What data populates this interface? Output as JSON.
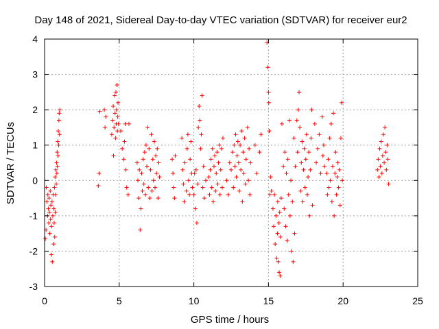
{
  "chart_data": {
    "type": "scatter",
    "title": "Day 148 of 2021, Sidereal Day-to-day VTEC variation (SDTVAR) for receiver eur2",
    "xlabel": "GPS time / hours",
    "ylabel": "SDTVAR / TECUs",
    "xlim": [
      0,
      25
    ],
    "ylim": [
      -3,
      4
    ],
    "xticks": [
      0,
      5,
      10,
      15,
      20,
      25
    ],
    "yticks": [
      -3,
      -2,
      -1,
      0,
      1,
      2,
      3,
      4
    ],
    "xtick_labels": [
      "0",
      "5",
      "10",
      "15",
      "20",
      "25"
    ],
    "ytick_labels": [
      "-3",
      "-2",
      "-1",
      "0",
      "1",
      "2",
      "3",
      "4"
    ],
    "grid": true,
    "marker": "+",
    "color": "#ff0000",
    "series": [
      {
        "name": "SDTVAR",
        "points": [
          [
            0.05,
            -1.65
          ],
          [
            0.1,
            -1.4
          ],
          [
            0.12,
            -0.2
          ],
          [
            0.15,
            -0.6
          ],
          [
            0.2,
            -1.0
          ],
          [
            0.22,
            -0.4
          ],
          [
            0.25,
            -0.8
          ],
          [
            0.28,
            -1.2
          ],
          [
            0.3,
            -0.5
          ],
          [
            0.32,
            -0.9
          ],
          [
            0.35,
            -1.5
          ],
          [
            0.38,
            -0.3
          ],
          [
            0.4,
            -1.1
          ],
          [
            0.42,
            -0.7
          ],
          [
            0.45,
            -2.1
          ],
          [
            0.47,
            -1.3
          ],
          [
            0.5,
            -0.6
          ],
          [
            0.52,
            -2.3
          ],
          [
            0.55,
            -1.0
          ],
          [
            0.57,
            -0.4
          ],
          [
            0.6,
            -1.8
          ],
          [
            0.62,
            -0.8
          ],
          [
            0.64,
            -1.2
          ],
          [
            0.66,
            -0.2
          ],
          [
            0.68,
            -1.6
          ],
          [
            0.7,
            0.1
          ],
          [
            0.72,
            -0.9
          ],
          [
            0.74,
            -0.4
          ],
          [
            0.76,
            0.3
          ],
          [
            0.78,
            -0.1
          ],
          [
            0.8,
            0.5
          ],
          [
            0.82,
            0.2
          ],
          [
            0.84,
            0.8
          ],
          [
            0.86,
            0.4
          ],
          [
            0.88,
            1.1
          ],
          [
            0.9,
            0.7
          ],
          [
            0.92,
            1.4
          ],
          [
            0.94,
            1.0
          ],
          [
            0.96,
            1.7
          ],
          [
            0.98,
            1.9
          ],
          [
            1.0,
            1.3
          ],
          [
            1.02,
            2.0
          ],
          [
            3.6,
            -0.15
          ],
          [
            3.65,
            0.2
          ],
          [
            3.7,
            1.95
          ],
          [
            4.0,
            2.0
          ],
          [
            4.05,
            1.5
          ],
          [
            4.1,
            1.8
          ],
          [
            4.5,
            1.3
          ],
          [
            4.55,
            1.7
          ],
          [
            4.6,
            2.1
          ],
          [
            4.62,
            0.7
          ],
          [
            4.65,
            1.5
          ],
          [
            4.7,
            2.4
          ],
          [
            4.72,
            1.9
          ],
          [
            4.75,
            1.2
          ],
          [
            4.78,
            2.5
          ],
          [
            4.8,
            1.6
          ],
          [
            4.82,
            2.0
          ],
          [
            4.85,
            2.7
          ],
          [
            4.88,
            1.4
          ],
          [
            4.9,
            1.8
          ],
          [
            4.92,
            2.2
          ],
          [
            4.95,
            1.6
          ],
          [
            5.1,
            1.4
          ],
          [
            5.2,
            0.9
          ],
          [
            5.3,
            0.6
          ],
          [
            5.35,
            1.1
          ],
          [
            5.4,
            1.6
          ],
          [
            5.45,
            0.3
          ],
          [
            5.5,
            -0.2
          ],
          [
            5.6,
            -0.4
          ],
          [
            5.65,
            1.6
          ],
          [
            6.2,
            0.5
          ],
          [
            6.25,
            0.0
          ],
          [
            6.3,
            -0.5
          ],
          [
            6.35,
            0.3
          ],
          [
            6.4,
            -1.4
          ],
          [
            6.45,
            -0.8
          ],
          [
            6.5,
            0.2
          ],
          [
            6.55,
            -0.3
          ],
          [
            6.6,
            0.6
          ],
          [
            6.65,
            -0.1
          ],
          [
            6.7,
            0.8
          ],
          [
            6.75,
            -0.4
          ],
          [
            6.8,
            1.0
          ],
          [
            6.85,
            0.4
          ],
          [
            6.9,
            1.5
          ],
          [
            6.95,
            -0.2
          ],
          [
            7.0,
            0.9
          ],
          [
            7.05,
            -0.5
          ],
          [
            7.1,
            0.3
          ],
          [
            7.15,
            1.3
          ],
          [
            7.2,
            -0.3
          ],
          [
            7.25,
            0.6
          ],
          [
            7.3,
            0.0
          ],
          [
            7.35,
            1.1
          ],
          [
            7.4,
            -0.2
          ],
          [
            7.45,
            0.7
          ],
          [
            7.5,
            0.2
          ],
          [
            7.55,
            0.9
          ],
          [
            7.6,
            -0.5
          ],
          [
            7.65,
            0.5
          ],
          [
            7.7,
            0.1
          ],
          [
            8.55,
            0.6
          ],
          [
            8.6,
            0.2
          ],
          [
            8.65,
            -0.2
          ],
          [
            8.7,
            -0.5
          ],
          [
            8.75,
            0.7
          ],
          [
            9.2,
            1.2
          ],
          [
            9.25,
            0.3
          ],
          [
            9.3,
            -0.1
          ],
          [
            9.35,
            -0.6
          ],
          [
            9.4,
            0.5
          ],
          [
            9.5,
            -0.3
          ],
          [
            9.55,
            0.9
          ],
          [
            9.6,
            1.3
          ],
          [
            9.65,
            0.0
          ],
          [
            9.7,
            -0.4
          ],
          [
            9.75,
            0.6
          ],
          [
            9.8,
            1.1
          ],
          [
            9.85,
            0.2
          ],
          [
            9.9,
            -0.2
          ],
          [
            10.0,
            -0.4
          ],
          [
            10.05,
            0.2
          ],
          [
            10.1,
            -0.8
          ],
          [
            10.15,
            0.3
          ],
          [
            10.2,
            -1.2
          ],
          [
            10.25,
            -0.1
          ],
          [
            10.3,
            1.5
          ],
          [
            10.35,
            2.1
          ],
          [
            10.4,
            1.7
          ],
          [
            10.45,
            0.9
          ],
          [
            10.5,
            1.3
          ],
          [
            10.55,
            2.4
          ],
          [
            10.6,
            -0.2
          ],
          [
            10.65,
            0.4
          ],
          [
            10.7,
            -0.5
          ],
          [
            10.8,
            0.0
          ],
          [
            11.0,
            0.1
          ],
          [
            11.05,
            -0.4
          ],
          [
            11.1,
            0.3
          ],
          [
            11.15,
            0.6
          ],
          [
            11.2,
            -0.2
          ],
          [
            11.25,
            0.9
          ],
          [
            11.3,
            -0.6
          ],
          [
            11.35,
            0.4
          ],
          [
            11.4,
            0.7
          ],
          [
            11.45,
            -0.3
          ],
          [
            11.5,
            0.2
          ],
          [
            11.55,
            0.8
          ],
          [
            11.6,
            -0.1
          ],
          [
            11.65,
            0.5
          ],
          [
            11.7,
            1.0
          ],
          [
            11.75,
            -0.4
          ],
          [
            11.8,
            0.3
          ],
          [
            11.85,
            0.9
          ],
          [
            11.9,
            -0.2
          ],
          [
            11.95,
            1.2
          ],
          [
            12.2,
            0.0
          ],
          [
            12.3,
            -0.4
          ],
          [
            12.4,
            0.5
          ],
          [
            12.5,
            0.3
          ],
          [
            12.6,
            0.8
          ],
          [
            12.65,
            -0.2
          ],
          [
            12.7,
            1.0
          ],
          [
            12.75,
            0.4
          ],
          [
            12.8,
            1.3
          ],
          [
            12.85,
            0.1
          ],
          [
            12.9,
            0.7
          ],
          [
            12.95,
            1.1
          ],
          [
            13.0,
            0.5
          ],
          [
            13.05,
            -0.3
          ],
          [
            13.1,
            1.0
          ],
          [
            13.15,
            0.3
          ],
          [
            13.2,
            1.4
          ],
          [
            13.25,
            -0.6
          ],
          [
            13.3,
            0.8
          ],
          [
            13.35,
            0.2
          ],
          [
            13.4,
            1.2
          ],
          [
            13.45,
            -0.1
          ],
          [
            13.5,
            0.6
          ],
          [
            13.6,
            1.5
          ],
          [
            13.65,
            0.0
          ],
          [
            13.7,
            0.9
          ],
          [
            13.75,
            -0.4
          ],
          [
            13.8,
            0.5
          ],
          [
            14.1,
            1.0
          ],
          [
            14.2,
            0.2
          ],
          [
            14.4,
            0.8
          ],
          [
            14.5,
            1.3
          ],
          [
            14.9,
            3.9
          ],
          [
            14.95,
            3.2
          ],
          [
            15.0,
            2.5
          ],
          [
            15.02,
            2.2
          ],
          [
            15.05,
            1.4
          ],
          [
            15.1,
            -0.4
          ],
          [
            15.15,
            0.1
          ],
          [
            15.2,
            -0.3
          ],
          [
            15.3,
            -0.8
          ],
          [
            15.35,
            -1.3
          ],
          [
            15.4,
            -0.4
          ],
          [
            15.45,
            -1.8
          ],
          [
            15.5,
            -1.0
          ],
          [
            15.55,
            -2.2
          ],
          [
            15.6,
            -1.5
          ],
          [
            15.62,
            -0.6
          ],
          [
            15.65,
            -2.3
          ],
          [
            15.7,
            -1.2
          ],
          [
            15.72,
            -2.6
          ],
          [
            15.75,
            -0.9
          ],
          [
            15.78,
            -2.7
          ],
          [
            15.8,
            -1.6
          ],
          [
            15.85,
            -0.5
          ],
          [
            15.9,
            1.6
          ],
          [
            16.0,
            0.4
          ],
          [
            16.05,
            -0.8
          ],
          [
            16.1,
            0.8
          ],
          [
            16.15,
            -1.3
          ],
          [
            16.2,
            0.2
          ],
          [
            16.25,
            -1.7
          ],
          [
            16.3,
            0.6
          ],
          [
            16.35,
            -0.4
          ],
          [
            16.4,
            1.7
          ],
          [
            16.45,
            -1.0
          ],
          [
            16.5,
            0.0
          ],
          [
            16.55,
            -2.0
          ],
          [
            16.6,
            -0.6
          ],
          [
            16.65,
            -2.3
          ],
          [
            16.7,
            1.2
          ],
          [
            16.75,
            -1.5
          ],
          [
            16.8,
            0.4
          ],
          [
            16.9,
            1.7
          ],
          [
            16.95,
            0.8
          ],
          [
            17.0,
            2.0
          ],
          [
            17.05,
            2.5
          ],
          [
            17.1,
            1.5
          ],
          [
            17.15,
            -0.3
          ],
          [
            17.2,
            0.5
          ],
          [
            17.25,
            1.1
          ],
          [
            17.3,
            -0.6
          ],
          [
            17.35,
            0.3
          ],
          [
            17.4,
            0.9
          ],
          [
            17.45,
            -0.2
          ],
          [
            17.5,
            0.6
          ],
          [
            17.55,
            1.3
          ],
          [
            17.6,
            -0.4
          ],
          [
            17.65,
            0.1
          ],
          [
            17.7,
            0.8
          ],
          [
            17.75,
            -1.0
          ],
          [
            17.8,
            0.3
          ],
          [
            17.85,
            1.2
          ],
          [
            17.9,
            2.0
          ],
          [
            17.95,
            -0.7
          ],
          [
            18.1,
            1.6
          ],
          [
            18.2,
            0.5
          ],
          [
            18.3,
            0.9
          ],
          [
            18.4,
            1.3
          ],
          [
            18.5,
            0.2
          ],
          [
            18.6,
            1.8
          ],
          [
            18.65,
            0.7
          ],
          [
            18.7,
            1.0
          ],
          [
            18.75,
            0.4
          ],
          [
            18.9,
            0.2
          ],
          [
            18.95,
            -0.4
          ],
          [
            19.0,
            0.6
          ],
          [
            19.05,
            -0.2
          ],
          [
            19.1,
            1.2
          ],
          [
            19.15,
            0.0
          ],
          [
            19.2,
            1.6
          ],
          [
            19.25,
            -0.6
          ],
          [
            19.3,
            0.4
          ],
          [
            19.35,
            1.9
          ],
          [
            19.4,
            -1.0
          ],
          [
            19.45,
            0.2
          ],
          [
            19.5,
            0.8
          ],
          [
            19.55,
            -0.4
          ],
          [
            19.6,
            0.1
          ],
          [
            19.65,
            0.5
          ],
          [
            19.7,
            -0.2
          ],
          [
            19.75,
            0.3
          ],
          [
            19.8,
            -0.7
          ],
          [
            19.85,
            1.2
          ],
          [
            19.9,
            2.2
          ],
          [
            19.95,
            0.0
          ],
          [
            22.3,
            0.3
          ],
          [
            22.35,
            0.6
          ],
          [
            22.4,
            0.1
          ],
          [
            22.45,
            0.9
          ],
          [
            22.5,
            0.4
          ],
          [
            22.55,
            1.1
          ],
          [
            22.6,
            0.2
          ],
          [
            22.65,
            0.7
          ],
          [
            22.7,
            1.3
          ],
          [
            22.75,
            0.5
          ],
          [
            22.8,
            1.5
          ],
          [
            22.85,
            0.8
          ],
          [
            22.9,
            0.3
          ],
          [
            22.95,
            1.0
          ],
          [
            23.0,
            0.6
          ],
          [
            23.05,
            -0.1
          ]
        ]
      }
    ]
  }
}
